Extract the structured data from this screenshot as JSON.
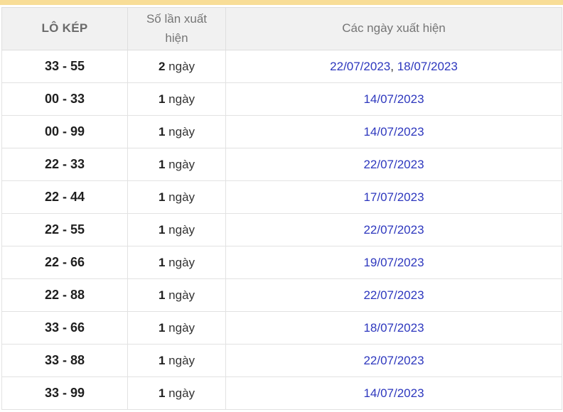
{
  "page": {
    "highlight_bar_color": "#f8dd97",
    "link_color": "#2d37be"
  },
  "table": {
    "columns": [
      {
        "key": "pair",
        "label": "LÔ KÉP"
      },
      {
        "key": "count",
        "label": "Số lần xuất hiện"
      },
      {
        "key": "dates",
        "label": "Các ngày xuất hiện"
      }
    ],
    "rows": [
      {
        "pair": "33 - 55",
        "count": "2",
        "unit": "ngày",
        "dates": [
          "22/07/2023",
          "18/07/2023"
        ]
      },
      {
        "pair": "00 - 33",
        "count": "1",
        "unit": "ngày",
        "dates": [
          "14/07/2023"
        ]
      },
      {
        "pair": "00 - 99",
        "count": "1",
        "unit": "ngày",
        "dates": [
          "14/07/2023"
        ]
      },
      {
        "pair": "22 - 33",
        "count": "1",
        "unit": "ngày",
        "dates": [
          "22/07/2023"
        ]
      },
      {
        "pair": "22 - 44",
        "count": "1",
        "unit": "ngày",
        "dates": [
          "17/07/2023"
        ]
      },
      {
        "pair": "22 - 55",
        "count": "1",
        "unit": "ngày",
        "dates": [
          "22/07/2023"
        ]
      },
      {
        "pair": "22 - 66",
        "count": "1",
        "unit": "ngày",
        "dates": [
          "19/07/2023"
        ]
      },
      {
        "pair": "22 - 88",
        "count": "1",
        "unit": "ngày",
        "dates": [
          "22/07/2023"
        ]
      },
      {
        "pair": "33 - 66",
        "count": "1",
        "unit": "ngày",
        "dates": [
          "18/07/2023"
        ]
      },
      {
        "pair": "33 - 88",
        "count": "1",
        "unit": "ngày",
        "dates": [
          "22/07/2023"
        ]
      },
      {
        "pair": "33 - 99",
        "count": "1",
        "unit": "ngày",
        "dates": [
          "14/07/2023"
        ]
      }
    ],
    "date_separator": ", "
  }
}
